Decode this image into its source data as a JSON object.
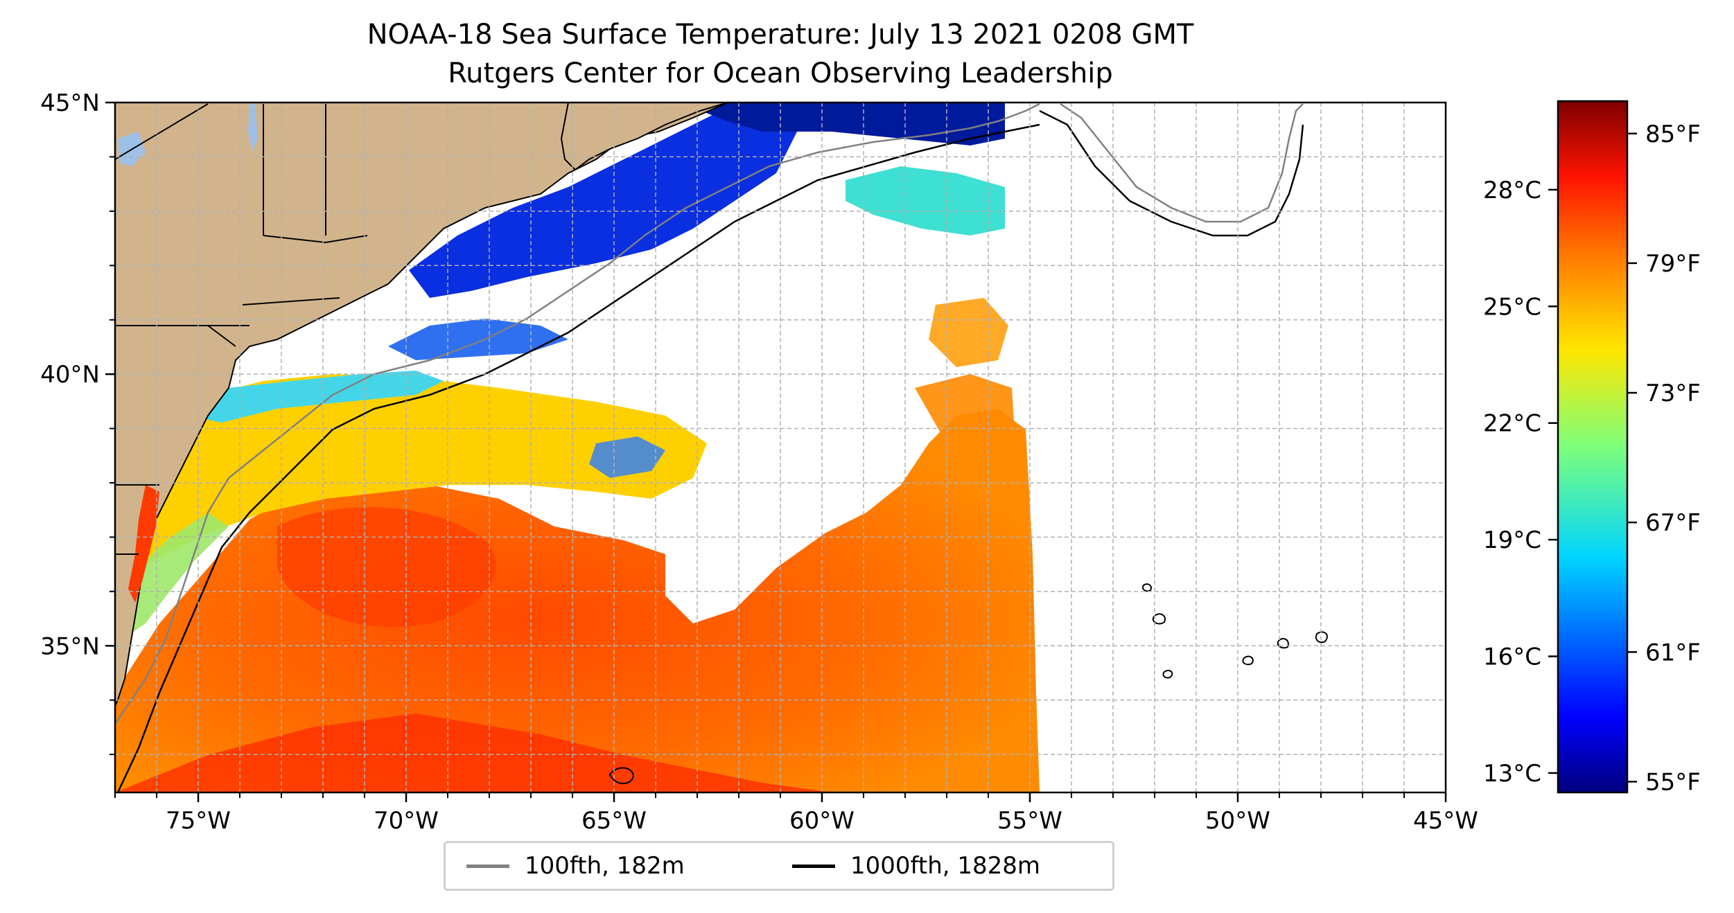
{
  "title": {
    "line1": "NOAA-18 Sea Surface Temperature: July 13 2021 0208 GMT",
    "line2": "Rutgers Center for Ocean Observing Leadership"
  },
  "map": {
    "lon_range": [
      -77,
      -45
    ],
    "lat_range": [
      32.3,
      45
    ],
    "x_ticks": [
      {
        "lon": -75,
        "label": "75°W"
      },
      {
        "lon": -70,
        "label": "70°W"
      },
      {
        "lon": -65,
        "label": "65°W"
      },
      {
        "lon": -60,
        "label": "60°W"
      },
      {
        "lon": -55,
        "label": "55°W"
      },
      {
        "lon": -50,
        "label": "50°W"
      },
      {
        "lon": -45,
        "label": "45°W"
      }
    ],
    "y_ticks": [
      {
        "lat": 45,
        "label": "45°N"
      },
      {
        "lat": 40,
        "label": "40°N"
      },
      {
        "lat": 35,
        "label": "35°N"
      }
    ],
    "gridlines": "dashed, every 1°",
    "land_color": "#d2b48c",
    "lake_color": "#9fc0e6",
    "missing_data_color": "#ffffff"
  },
  "colorbar": {
    "colormap": "jet",
    "celsius_ticks": [
      {
        "value": 28,
        "label": "28°C"
      },
      {
        "value": 25,
        "label": "25°C"
      },
      {
        "value": 22,
        "label": "22°C"
      },
      {
        "value": 19,
        "label": "19°C"
      },
      {
        "value": 16,
        "label": "16°C"
      },
      {
        "value": 13,
        "label": "13°C"
      }
    ],
    "fahrenheit_ticks": [
      {
        "value": 85,
        "label": "85°F"
      },
      {
        "value": 79,
        "label": "79°F"
      },
      {
        "value": 73,
        "label": "73°F"
      },
      {
        "value": 67,
        "label": "67°F"
      },
      {
        "value": 61,
        "label": "61°F"
      },
      {
        "value": 55,
        "label": "55°F"
      }
    ],
    "range_f": [
      54.5,
      86.5
    ]
  },
  "legend": {
    "items": [
      {
        "label": "100fth, 182m",
        "color": "#808080"
      },
      {
        "label": "1000fth, 1828m",
        "color": "#000000"
      }
    ]
  }
}
